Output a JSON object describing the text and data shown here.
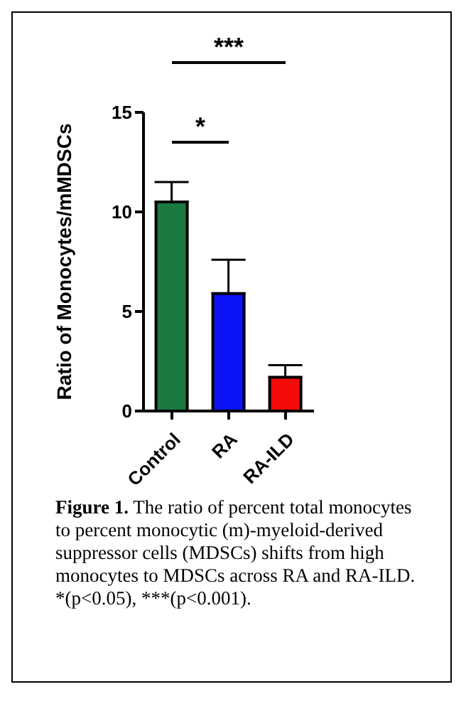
{
  "chart_data": {
    "type": "bar",
    "ylabel": "Ratio of Monocytes/mMDSCs",
    "categories": [
      "Control",
      "RA",
      "RA-ILD"
    ],
    "values": [
      10.5,
      5.9,
      1.7
    ],
    "colors": [
      "#1a7a40",
      "#0a14f5",
      "#f50a0a"
    ],
    "errors": [
      [
        10.5,
        11.5
      ],
      [
        5.9,
        7.6
      ],
      [
        1.7,
        2.3
      ]
    ],
    "ylim": [
      0,
      15
    ],
    "yticks": [
      0,
      5,
      10,
      15
    ],
    "annotations": [
      "***",
      "*",
      "Figure 1.",
      "The ratio of percent total monocytes to percent monocytic (m)-myeloid-derived suppressor cells (MDSCs) shifts from high monocytes to MDSCs across RA and RA-ILD. *(p<0.05), ***(p<0.001)."
    ]
  }
}
